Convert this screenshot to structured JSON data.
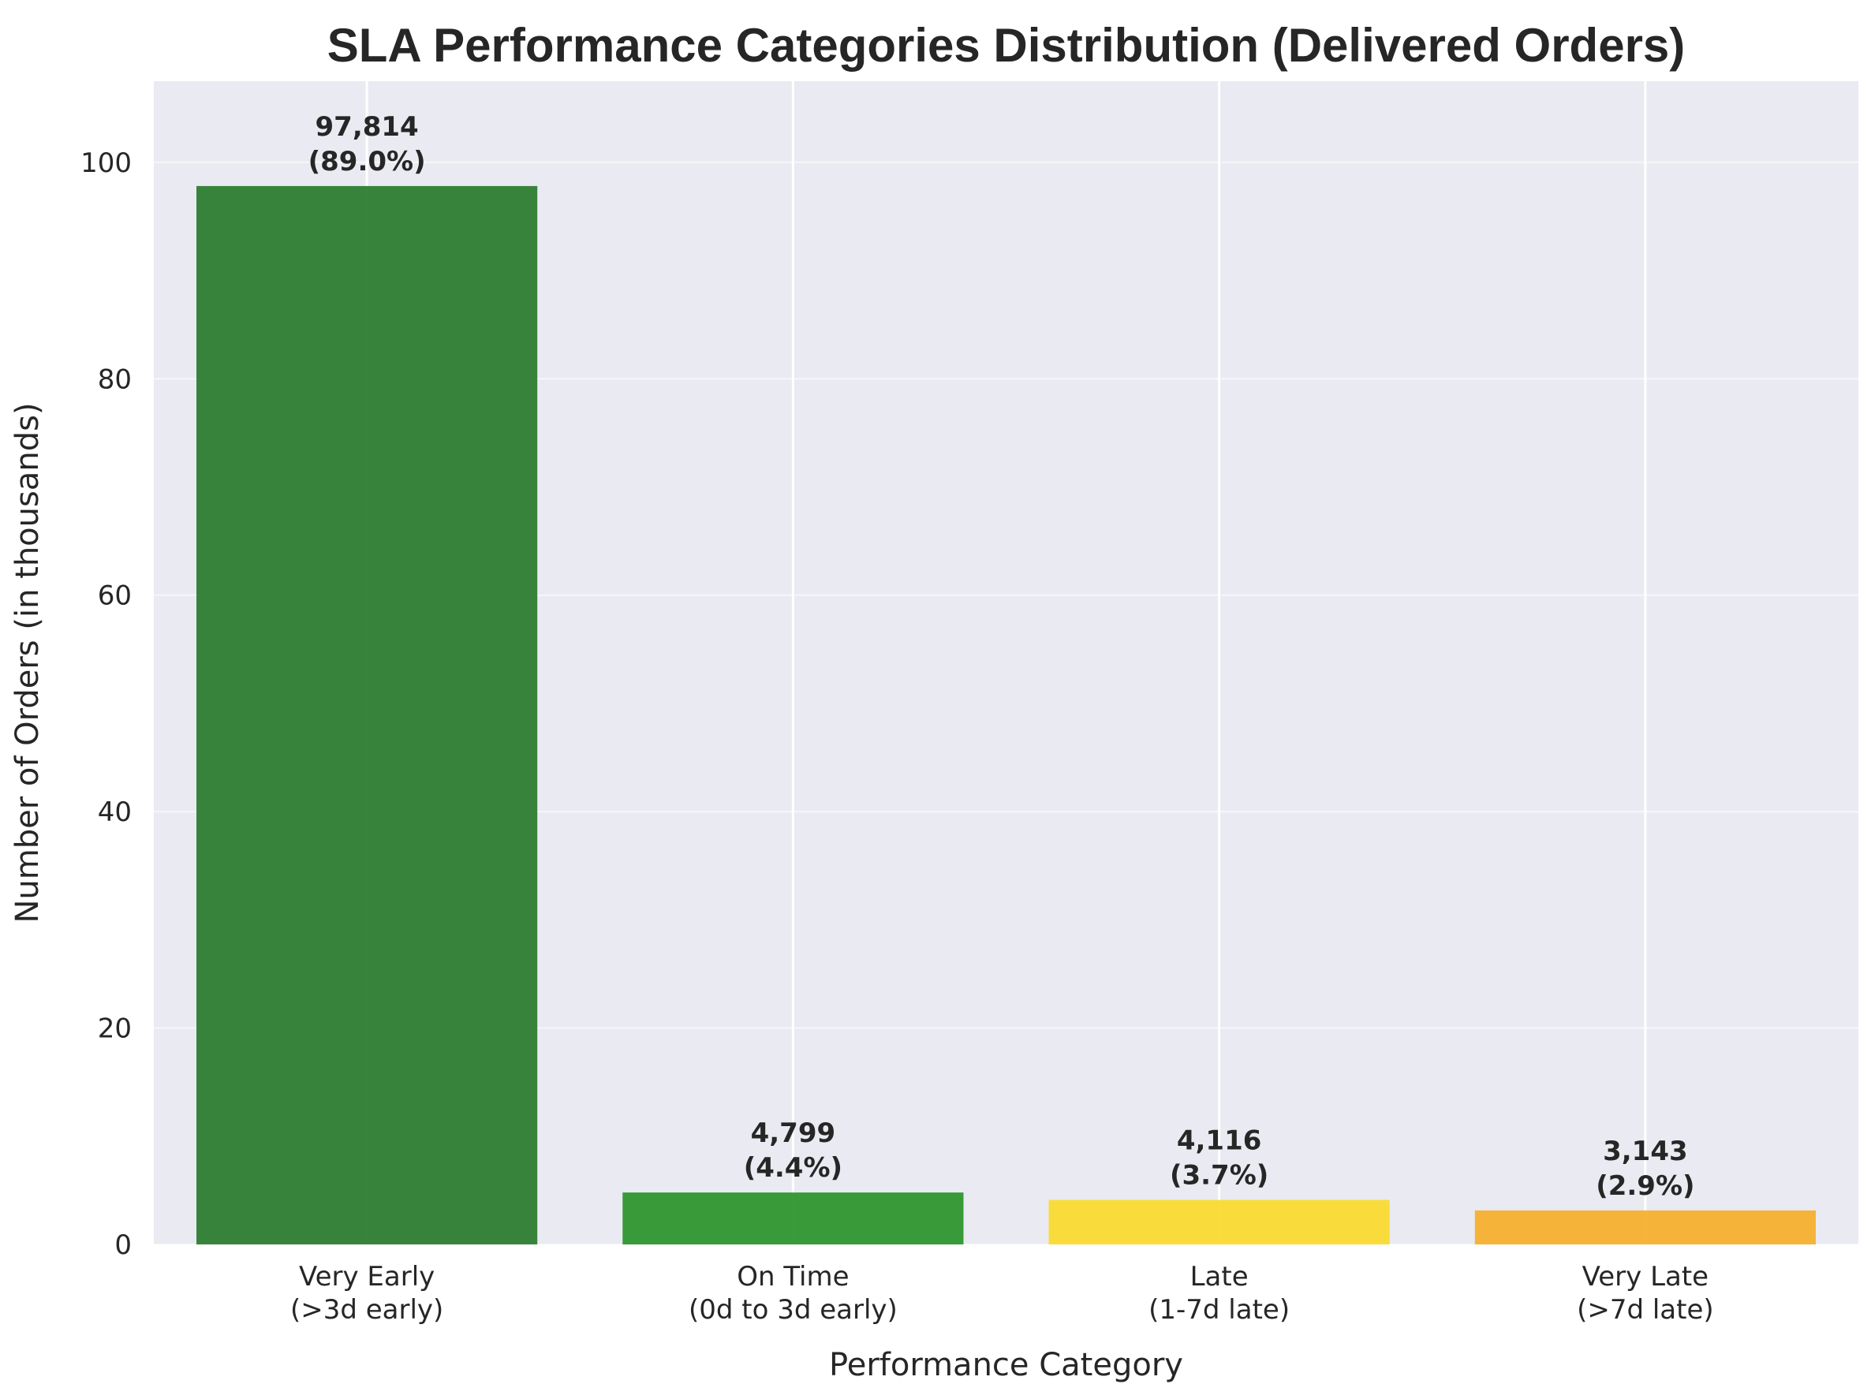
{
  "chart_data": {
    "type": "bar",
    "title": "SLA Performance Categories Distribution (Delivered Orders)",
    "xlabel": "Performance Category",
    "ylabel": "Number of Orders (in thousands)",
    "ylim": [
      0,
      107.5
    ],
    "yticks": [
      0,
      20,
      40,
      60,
      80,
      100
    ],
    "grid": true,
    "categories": [
      [
        "Very Early",
        "(>3d early)"
      ],
      [
        "On Time",
        "(0d to 3d early)"
      ],
      [
        "Late",
        "(1-7d late)"
      ],
      [
        "Very Late",
        "(>7d late)"
      ]
    ],
    "values": [
      97.814,
      4.799,
      4.116,
      3.143
    ],
    "value_labels": [
      "97,814",
      "4,799",
      "4,116",
      "3,143"
    ],
    "percent_labels": [
      "(89.0%)",
      "(4.4%)",
      "(3.7%)",
      "(2.9%)"
    ],
    "colors": [
      "#2e7d32",
      "#2e962e",
      "#fadb32",
      "#f7b02f"
    ],
    "plot_background": "#eaeaf2",
    "grid_color": "#ffffff"
  }
}
